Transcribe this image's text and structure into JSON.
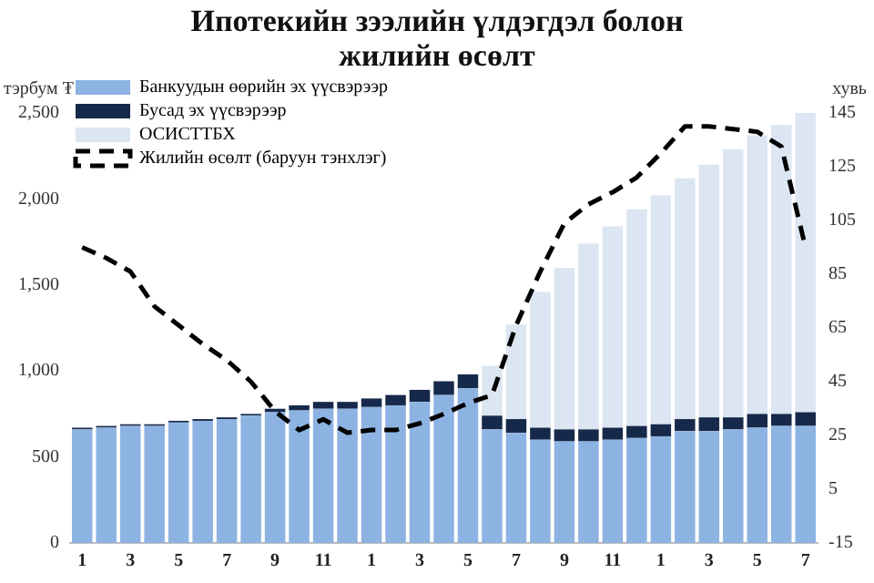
{
  "chart_data": {
    "type": "bar",
    "title": "Ипотекийн зээлийн үлдэгдэл болон жилийн өсөлт",
    "ylabel": "тэрбум ₮",
    "y2label": "хувь",
    "stacked": true,
    "legend": "top left",
    "grid": false,
    "marker": "none",
    "categories": [
      "1",
      null,
      "3",
      null,
      "5",
      null,
      "7",
      null,
      "9",
      null,
      "11",
      null,
      "1",
      null,
      "3",
      null,
      "5",
      null,
      "7",
      null,
      "9",
      null,
      "11",
      null,
      "1",
      null,
      "3",
      null,
      "5",
      null,
      "7"
    ],
    "ylim": [
      0,
      2500
    ],
    "yticks": [
      0,
      500,
      {
        "value": 1000,
        "label": "1,000"
      },
      {
        "value": 1500,
        "label": "1,500"
      },
      {
        "value": 2000,
        "label": "2,000"
      },
      {
        "value": 2500,
        "label": "2,500"
      }
    ],
    "y2lim": [
      -15,
      145
    ],
    "y2ticks": [
      -15,
      5,
      25,
      45,
      65,
      85,
      105,
      125,
      145
    ],
    "series": [
      {
        "name": "Банкуудын өөрийн эх үүсвэрээр",
        "color": "#8db3e2",
        "values": [
          660,
          670,
          680,
          680,
          700,
          710,
          720,
          740,
          760,
          770,
          780,
          780,
          790,
          800,
          820,
          860,
          900,
          660,
          640,
          600,
          590,
          590,
          600,
          610,
          620,
          650,
          650,
          660,
          670,
          680,
          680
        ]
      },
      {
        "name": "Бусад эх үүсвэрээр",
        "color": "#17294a",
        "values": [
          10,
          10,
          10,
          10,
          10,
          10,
          10,
          10,
          20,
          30,
          40,
          40,
          50,
          60,
          70,
          80,
          80,
          80,
          80,
          70,
          70,
          70,
          70,
          70,
          70,
          70,
          80,
          70,
          80,
          70,
          80
        ]
      },
      {
        "name": "ОСИСТТБХ",
        "color": "#dce6f2",
        "values": [
          null,
          null,
          null,
          null,
          null,
          null,
          null,
          null,
          null,
          null,
          null,
          null,
          null,
          null,
          null,
          null,
          null,
          290,
          550,
          790,
          940,
          1080,
          1170,
          1260,
          1330,
          1400,
          1470,
          1560,
          1620,
          1680,
          1740
        ]
      },
      {
        "name": "Жилийн өсөлт (баруун тэнхлэг)",
        "type": "line",
        "axis": "y2",
        "color": "#000000",
        "line_style": "dashed",
        "values": [
          95,
          91,
          86,
          73,
          66,
          59,
          53,
          45,
          34,
          27,
          31,
          26,
          27,
          27,
          29.5,
          33,
          37,
          40,
          66,
          86,
          104,
          111,
          115.5,
          121,
          130,
          140,
          140,
          139,
          138,
          132.5,
          95
        ]
      }
    ]
  }
}
